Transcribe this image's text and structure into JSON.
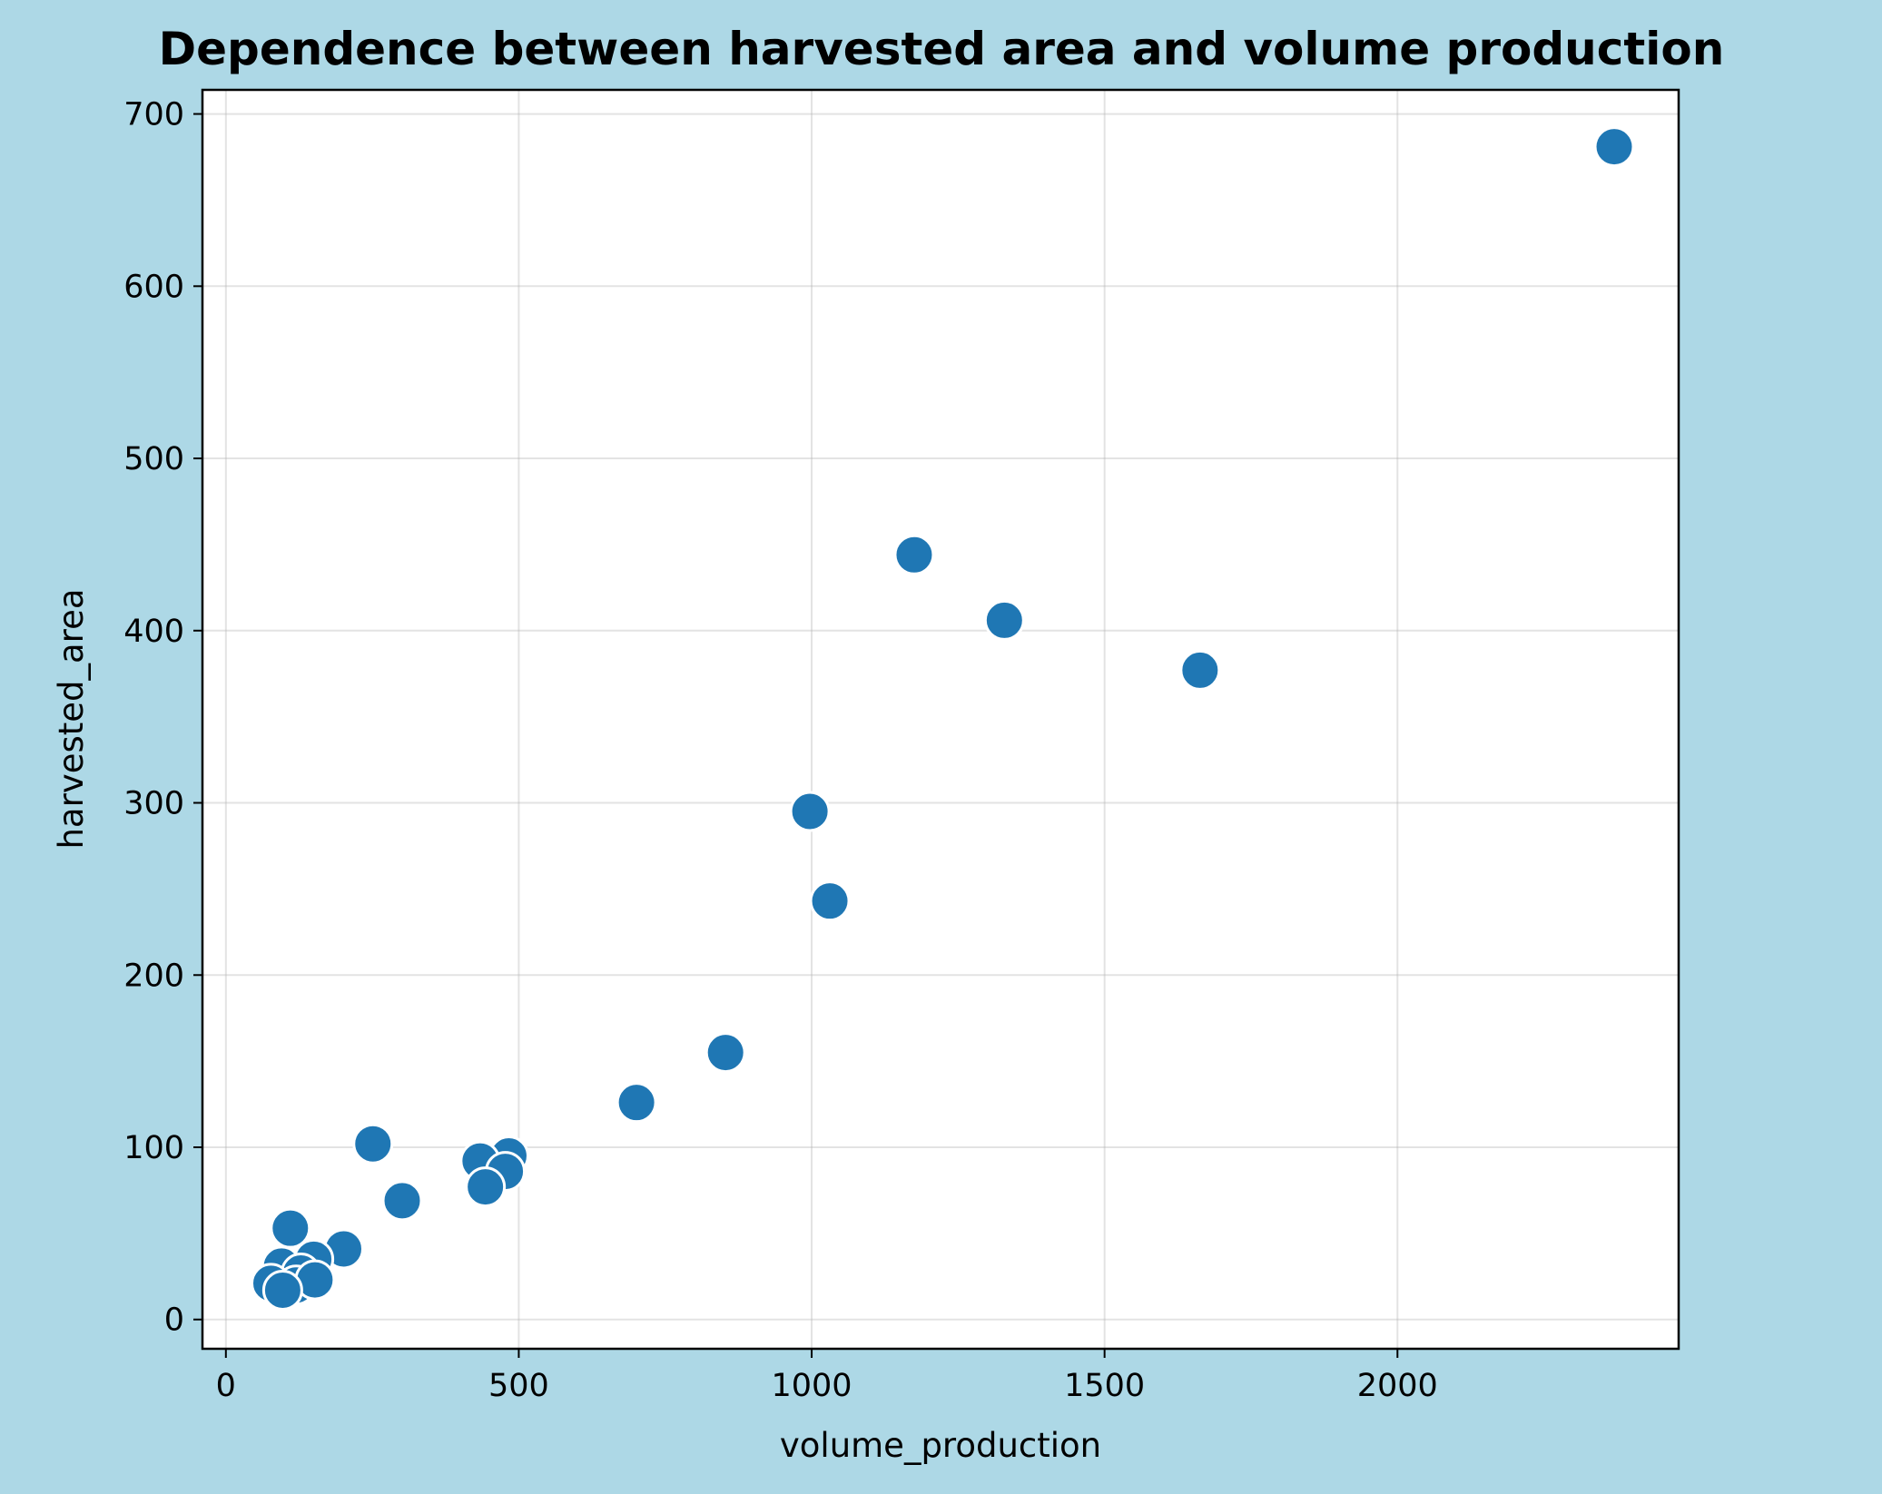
{
  "chart_data": {
    "type": "scatter",
    "title": "Dependence between harvested area and volume production",
    "xlabel": "volume_production",
    "ylabel": "harvested_area",
    "xlim": [
      -40,
      2480
    ],
    "ylim": [
      -17,
      714
    ],
    "xticks": [
      0,
      500,
      1000,
      1500,
      2000
    ],
    "yticks": [
      0,
      100,
      200,
      300,
      400,
      500,
      600,
      700
    ],
    "grid": true,
    "legend": "none",
    "color": "#1f77b4",
    "points": [
      {
        "x": 2370,
        "y": 681
      },
      {
        "x": 1175,
        "y": 444
      },
      {
        "x": 1329,
        "y": 406
      },
      {
        "x": 1663,
        "y": 377
      },
      {
        "x": 997,
        "y": 295
      },
      {
        "x": 1031,
        "y": 243
      },
      {
        "x": 853,
        "y": 155
      },
      {
        "x": 701,
        "y": 126
      },
      {
        "x": 251,
        "y": 102
      },
      {
        "x": 483,
        "y": 95
      },
      {
        "x": 434,
        "y": 92
      },
      {
        "x": 477,
        "y": 86
      },
      {
        "x": 443,
        "y": 77
      },
      {
        "x": 301,
        "y": 69
      },
      {
        "x": 110,
        "y": 53
      },
      {
        "x": 201,
        "y": 41
      },
      {
        "x": 150,
        "y": 35
      },
      {
        "x": 95,
        "y": 31
      },
      {
        "x": 128,
        "y": 27
      },
      {
        "x": 77,
        "y": 21
      },
      {
        "x": 120,
        "y": 20
      },
      {
        "x": 152,
        "y": 23
      },
      {
        "x": 97,
        "y": 17
      }
    ]
  }
}
